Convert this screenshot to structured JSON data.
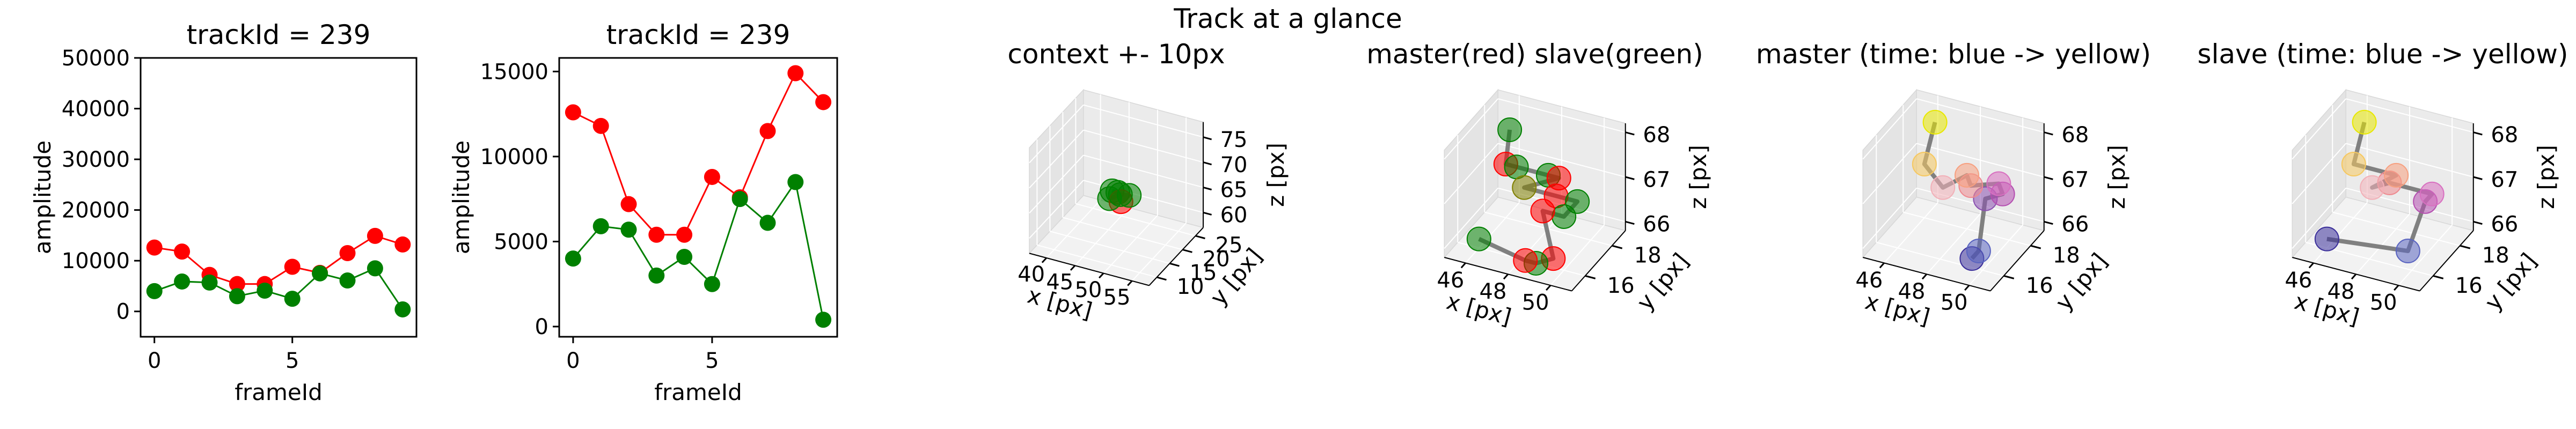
{
  "figure": {
    "suptitle": "Track at a glance"
  },
  "chart_data": [
    {
      "type": "line",
      "title": "trackId = 239",
      "xlabel": "frameId",
      "ylabel": "amplitude",
      "xlim": [
        -0.5,
        9.5
      ],
      "ylim": [
        -5000,
        50000
      ],
      "xticks": [
        0,
        5
      ],
      "yticks": [
        0,
        10000,
        20000,
        30000,
        40000,
        50000
      ],
      "x": [
        0,
        1,
        2,
        3,
        4,
        5,
        6,
        7,
        8,
        9
      ],
      "series": [
        {
          "color": "#ff0000",
          "values": [
            12600,
            11800,
            7200,
            5400,
            5400,
            8800,
            7600,
            11500,
            14900,
            13200
          ]
        },
        {
          "color": "#008000",
          "values": [
            4000,
            5900,
            5700,
            3000,
            4100,
            2500,
            7500,
            6100,
            8500,
            400
          ]
        }
      ]
    },
    {
      "type": "line",
      "title": "trackId = 239",
      "xlabel": "frameId",
      "ylabel": "amplitude",
      "xlim": [
        -0.5,
        9.5
      ],
      "ylim": [
        -600,
        15800
      ],
      "xticks": [
        0,
        5
      ],
      "yticks": [
        0,
        5000,
        10000,
        15000
      ],
      "x": [
        0,
        1,
        2,
        3,
        4,
        5,
        6,
        7,
        8,
        9
      ],
      "series": [
        {
          "color": "#ff0000",
          "values": [
            12600,
            11800,
            7200,
            5400,
            5400,
            8800,
            7600,
            11500,
            14900,
            13200
          ]
        },
        {
          "color": "#008000",
          "values": [
            4000,
            5900,
            5700,
            3000,
            4100,
            2500,
            7500,
            6100,
            8500,
            400
          ]
        }
      ]
    },
    {
      "type": "scatter3d",
      "title": "context +- 10px",
      "xlabel": "x [px]",
      "ylabel": "y [px]",
      "zlabel": "z [px]",
      "xlim": [
        37,
        58
      ],
      "ylim": [
        7,
        28
      ],
      "zlim": [
        57,
        78
      ],
      "xticks": [
        40,
        45,
        50,
        55
      ],
      "yticks": [
        10,
        15,
        20,
        25
      ],
      "zticks": [
        60,
        65,
        70,
        75
      ],
      "points": [
        {
          "x": 47,
          "y": 17,
          "z": 67,
          "color": "#008000"
        },
        {
          "x": 48,
          "y": 17,
          "z": 67,
          "color": "#008000"
        },
        {
          "x": 49,
          "y": 16,
          "z": 66,
          "color": "#ff0000"
        },
        {
          "x": 50,
          "y": 17,
          "z": 67,
          "color": "#008000"
        },
        {
          "x": 48,
          "y": 18,
          "z": 66,
          "color": "#008000"
        },
        {
          "x": 47,
          "y": 16,
          "z": 66,
          "color": "#008000"
        }
      ]
    },
    {
      "type": "scatter3d",
      "title": "master(red) slave(green)",
      "xlabel": "x [px]",
      "ylabel": "y [px]",
      "zlabel": "z [px]",
      "xlim": [
        45,
        51
      ],
      "ylim": [
        15,
        19
      ],
      "zlim": [
        65.8,
        68.2
      ],
      "xticks": [
        46,
        48,
        50
      ],
      "yticks": [
        16,
        18
      ],
      "zticks": [
        66,
        67,
        68
      ],
      "points": [
        {
          "x": 46.5,
          "y": 17.5,
          "z": 68,
          "color": "#008000"
        },
        {
          "x": 46,
          "y": 18,
          "z": 67,
          "color": "#ff0000"
        },
        {
          "x": 46.5,
          "y": 18,
          "z": 67,
          "color": "#008000"
        },
        {
          "x": 48,
          "y": 18,
          "z": 67,
          "color": "#008000"
        },
        {
          "x": 48.5,
          "y": 18,
          "z": 67,
          "color": "#ff0000"
        },
        {
          "x": 47.5,
          "y": 17,
          "z": 67,
          "color": "#808000"
        },
        {
          "x": 49,
          "y": 17,
          "z": 67,
          "color": "#ff0000"
        },
        {
          "x": 50,
          "y": 17,
          "z": 67,
          "color": "#008000"
        },
        {
          "x": 50,
          "y": 16,
          "z": 67,
          "color": "#008000"
        },
        {
          "x": 49,
          "y": 16,
          "z": 67,
          "color": "#ff0000"
        },
        {
          "x": 49.5,
          "y": 16,
          "z": 66,
          "color": "#ff0000"
        },
        {
          "x": 49,
          "y": 15.5,
          "z": 66,
          "color": "#008000"
        },
        {
          "x": 48.5,
          "y": 15.5,
          "z": 66,
          "color": "#ff0000"
        },
        {
          "x": 46,
          "y": 16,
          "z": 66,
          "color": "#008000"
        }
      ]
    },
    {
      "type": "scatter3d",
      "title": "master (time: blue -> yellow)",
      "xlabel": "x [px]",
      "ylabel": "y [px]",
      "zlabel": "z [px]",
      "xlim": [
        45,
        51
      ],
      "ylim": [
        15,
        19
      ],
      "zlim": [
        65.8,
        68.2
      ],
      "xticks": [
        46,
        48,
        50
      ],
      "yticks": [
        16,
        18
      ],
      "zticks": [
        66,
        67,
        68
      ],
      "points": [
        {
          "x": 49.5,
          "y": 16,
          "z": 66,
          "color": "#3b2f9a"
        },
        {
          "x": 49.5,
          "y": 16.5,
          "z": 66,
          "color": "#5a64c0"
        },
        {
          "x": 49.5,
          "y": 17,
          "z": 67,
          "color": "#8a50b0"
        },
        {
          "x": 50,
          "y": 17.5,
          "z": 67,
          "color": "#b44fb0"
        },
        {
          "x": 49.5,
          "y": 18,
          "z": 67,
          "color": "#d870c0"
        },
        {
          "x": 48.5,
          "y": 17.5,
          "z": 67,
          "color": "#ee8a90"
        },
        {
          "x": 48,
          "y": 18,
          "z": 67,
          "color": "#f7a080"
        },
        {
          "x": 47.5,
          "y": 17,
          "z": 67,
          "color": "#f2b0b8"
        },
        {
          "x": 46,
          "y": 18,
          "z": 67,
          "color": "#f6c860"
        },
        {
          "x": 46.5,
          "y": 18,
          "z": 68,
          "color": "#e8e800"
        }
      ]
    },
    {
      "type": "scatter3d",
      "title": "slave (time: blue -> yellow)",
      "xlabel": "x [px]",
      "ylabel": "y [px]",
      "zlabel": "z [px]",
      "xlim": [
        45,
        51
      ],
      "ylim": [
        15,
        19
      ],
      "zlim": [
        65.8,
        68.2
      ],
      "xticks": [
        46,
        48,
        50
      ],
      "yticks": [
        16,
        18
      ],
      "zticks": [
        66,
        67,
        68
      ],
      "points": [
        {
          "x": 46,
          "y": 16,
          "z": 66,
          "color": "#3b2f9a"
        },
        {
          "x": 49.5,
          "y": 16.5,
          "z": 66,
          "color": "#5a64c0"
        },
        {
          "x": 50,
          "y": 17,
          "z": 67,
          "color": "#b44fb0"
        },
        {
          "x": 50,
          "y": 17.5,
          "z": 67,
          "color": "#d870c0"
        },
        {
          "x": 48,
          "y": 17.5,
          "z": 67,
          "color": "#ee8a90"
        },
        {
          "x": 47.5,
          "y": 17,
          "z": 67,
          "color": "#f2b0b8"
        },
        {
          "x": 48,
          "y": 18,
          "z": 67,
          "color": "#f7a080"
        },
        {
          "x": 46,
          "y": 18,
          "z": 67,
          "color": "#f6c860"
        },
        {
          "x": 46.5,
          "y": 18,
          "z": 68,
          "color": "#e8e800"
        }
      ]
    }
  ]
}
